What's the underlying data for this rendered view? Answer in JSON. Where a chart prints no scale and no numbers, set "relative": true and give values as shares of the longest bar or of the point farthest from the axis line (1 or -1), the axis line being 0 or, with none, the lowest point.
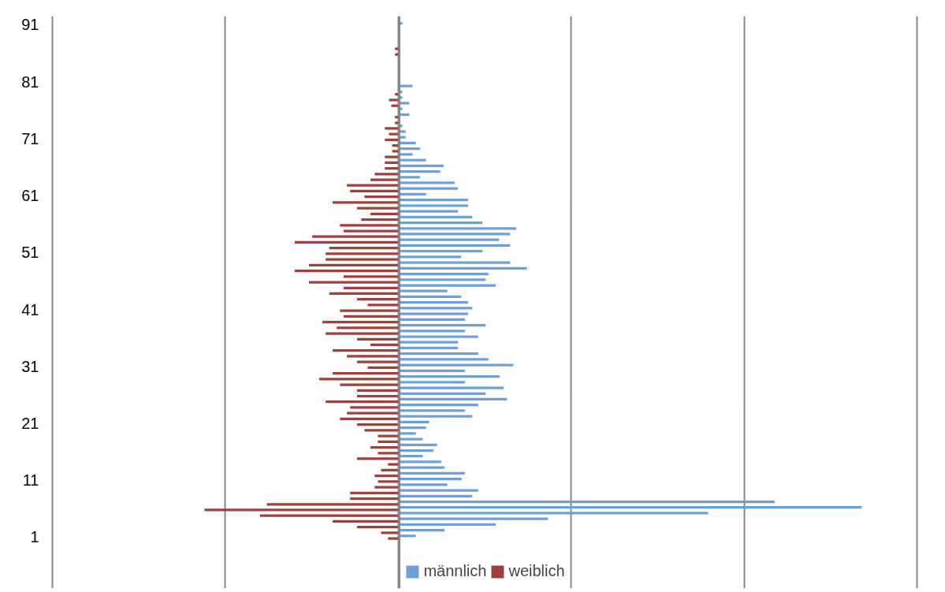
{
  "chart_data": {
    "type": "bar",
    "orientation": "horizontal",
    "relative": true,
    "grid": "x",
    "legend": "bottom",
    "tick_labels": "y",
    "categories": [
      "91",
      null,
      null,
      null,
      null,
      null,
      null,
      null,
      null,
      null,
      "81",
      null,
      null,
      null,
      null,
      null,
      null,
      null,
      null,
      null,
      "71",
      null,
      null,
      null,
      null,
      null,
      null,
      null,
      null,
      null,
      "61",
      null,
      null,
      null,
      null,
      null,
      null,
      null,
      null,
      null,
      "51",
      null,
      null,
      null,
      null,
      null,
      null,
      null,
      null,
      null,
      "41",
      null,
      null,
      null,
      null,
      null,
      null,
      null,
      null,
      null,
      "31",
      null,
      null,
      null,
      null,
      null,
      null,
      null,
      null,
      null,
      "21",
      null,
      null,
      null,
      null,
      null,
      null,
      null,
      null,
      null,
      "11",
      null,
      null,
      null,
      null,
      null,
      null,
      null,
      null,
      null,
      "1"
    ],
    "series": [
      {
        "name": "männlich",
        "color": "#6f9fd8",
        "values": [
          0.007,
          null,
          null,
          null,
          null,
          null,
          null,
          null,
          null,
          null,
          null,
          0.029,
          0.007,
          0.007,
          0.022,
          0.007,
          0.022,
          null,
          0.007,
          0.014,
          0.014,
          0.036,
          0.045,
          0.029,
          0.058,
          0.096,
          0.089,
          0.045,
          0.12,
          0.127,
          0.058,
          0.149,
          0.149,
          0.127,
          0.158,
          0.18,
          0.253,
          0.24,
          0.216,
          0.24,
          0.18,
          0.134,
          0.24,
          0.276,
          0.193,
          0.187,
          0.209,
          0.104,
          0.134,
          0.149,
          0.158,
          0.149,
          0.142,
          0.187,
          0.142,
          0.171,
          0.127,
          0.127,
          0.171,
          0.193,
          0.247,
          0.142,
          0.217,
          0.142,
          0.226,
          0.187,
          0.233,
          0.171,
          0.142,
          0.158,
          0.065,
          0.058,
          0.036,
          0.051,
          0.082,
          0.074,
          0.051,
          0.091,
          0.098,
          0.142,
          0.135,
          0.104,
          0.171,
          0.158,
          0.812,
          1,
          0.668,
          0.322,
          0.209,
          0.098,
          0.036
        ]
      },
      {
        "name": "weiblich",
        "color": "#a0403c",
        "values": [
          null,
          null,
          null,
          null,
          -0.009,
          -0.009,
          null,
          null,
          null,
          null,
          null,
          null,
          -0.009,
          -0.022,
          -0.017,
          null,
          -0.009,
          -0.009,
          -0.031,
          -0.022,
          -0.031,
          -0.015,
          -0.015,
          -0.031,
          -0.031,
          -0.031,
          -0.053,
          -0.062,
          -0.113,
          -0.106,
          -0.075,
          -0.144,
          -0.091,
          -0.062,
          -0.082,
          -0.128,
          -0.12,
          -0.188,
          -0.226,
          -0.151,
          -0.159,
          -0.159,
          -0.195,
          -0.226,
          -0.12,
          -0.195,
          -0.12,
          -0.151,
          -0.091,
          -0.068,
          -0.128,
          -0.12,
          -0.166,
          -0.135,
          -0.159,
          -0.091,
          -0.062,
          -0.144,
          -0.113,
          -0.091,
          -0.068,
          -0.144,
          -0.173,
          -0.128,
          -0.091,
          -0.091,
          -0.159,
          -0.106,
          -0.113,
          -0.128,
          -0.091,
          -0.075,
          -0.046,
          -0.046,
          -0.062,
          -0.046,
          -0.091,
          -0.024,
          -0.039,
          -0.053,
          -0.046,
          -0.053,
          -0.106,
          -0.106,
          -0.286,
          -0.421,
          -0.301,
          -0.144,
          -0.091,
          -0.039,
          -0.024
        ]
      }
    ]
  }
}
